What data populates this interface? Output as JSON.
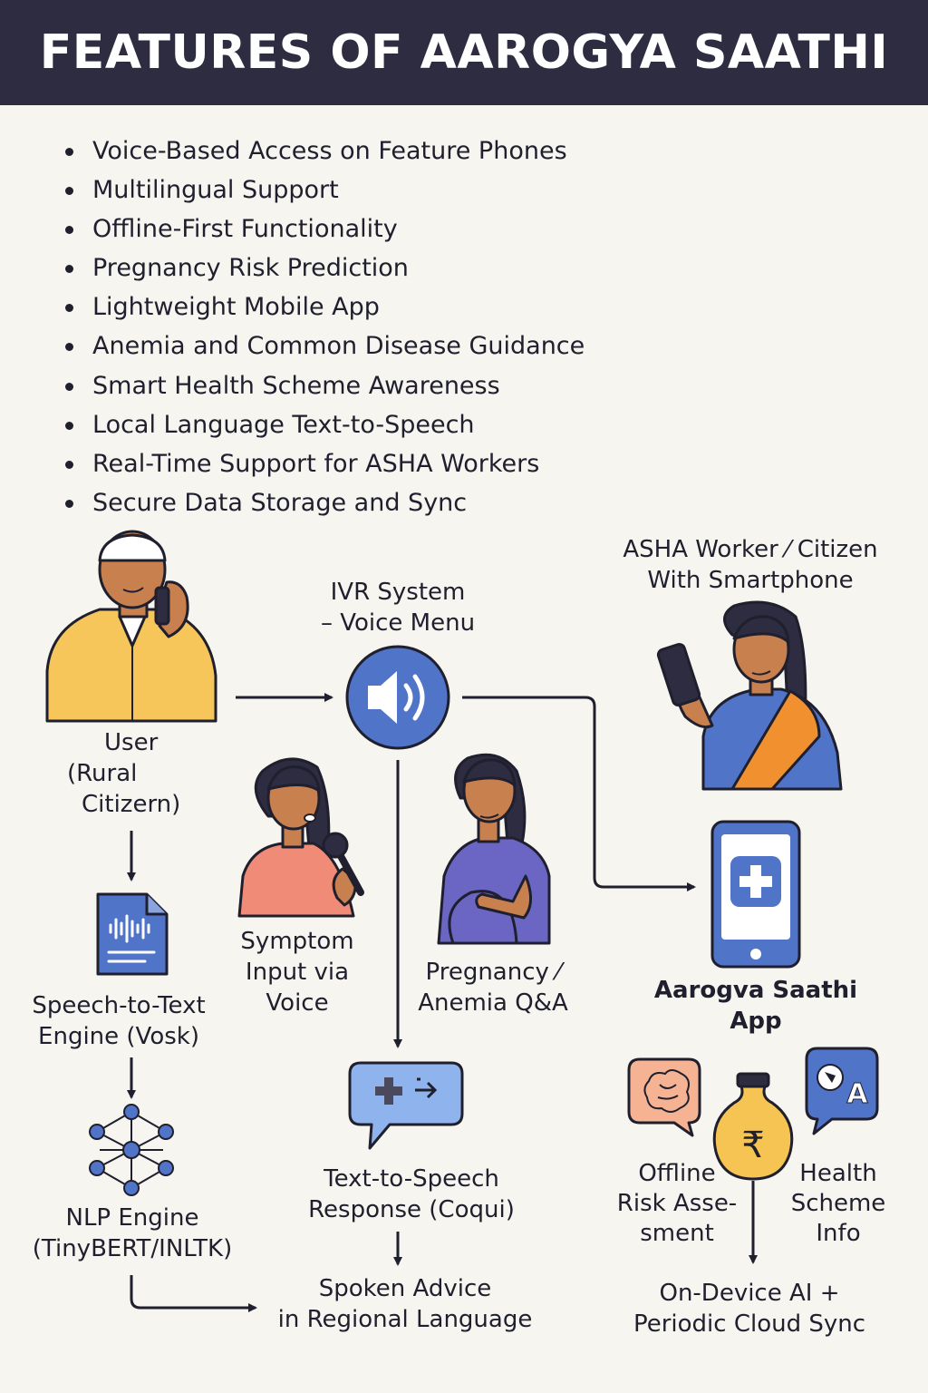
{
  "header": {
    "title": "FEATURES OF AAROGYA SAATHI"
  },
  "features": [
    "Voice-Based Access on Feature Phones",
    "Multilingual Support",
    "Offline-First Functionality",
    "Pregnancy Risk Prediction",
    "Lightweight Mobile App",
    "Anemia and Common Disease Guidance",
    "Smart Health Scheme Awareness",
    "Local Language Text-to-Speech",
    "Real-Time Support for ASHA Workers",
    "Secure Data Storage and Sync"
  ],
  "diagram": {
    "user": {
      "line1": "User",
      "line2": "(Rural",
      "line3": "Citizern)"
    },
    "ivr": {
      "line1": "IVR System",
      "line2": "– Voice Menu"
    },
    "asha": {
      "line1": "ASHA Worker ⁄ Citizen",
      "line2": "With Smartphone"
    },
    "symptom": {
      "line1": "Symptom",
      "line2": "Input via",
      "line3": "Voice"
    },
    "pregnancy": {
      "line1": "Pregnancy ⁄",
      "line2": "Anemia Q&A"
    },
    "app": {
      "line1": "Aarogva Saathi",
      "line2": "App"
    },
    "stt": {
      "line1": "Speech-to-Text",
      "line2": "Engine (Vosk)"
    },
    "nlp": {
      "line1": "NLP Engine",
      "line2": "(TinyBERT/INLTK)"
    },
    "tts": {
      "line1": "Text-to-Speech",
      "line2": "Response (Coqui)"
    },
    "spoken": {
      "line1": "Spoken Advice",
      "line2": "in Regional Language"
    },
    "risk": {
      "line1": "Offline",
      "line2": "Risk Asse-",
      "line3": "sment"
    },
    "scheme": {
      "line1": "Health",
      "line2": "Scheme",
      "line3": "Info"
    },
    "ondevice": {
      "line1": "On-Device AI +",
      "line2": "Periodic Cloud Sync"
    }
  },
  "colors": {
    "header_bg": "#2d2c40",
    "accent_blue": "#4f74c8",
    "shirt_yellow": "#f6c65b",
    "skin": "#c9804f",
    "saree_orange": "#f0902e",
    "pink_top": "#ef8b76",
    "purple_dress": "#6b66c4",
    "money_bag": "#f5c453",
    "brain_peach": "#f6b393"
  },
  "icons": [
    "rural-user-phone-icon",
    "speaker-icon",
    "asha-worker-icon",
    "woman-microphone-icon",
    "pregnant-woman-icon",
    "smartphone-medical-icon",
    "audio-document-icon",
    "neural-network-icon",
    "medical-speech-bubble-icon",
    "brain-chat-icon",
    "rupee-money-bag-icon",
    "translate-chat-icon"
  ]
}
